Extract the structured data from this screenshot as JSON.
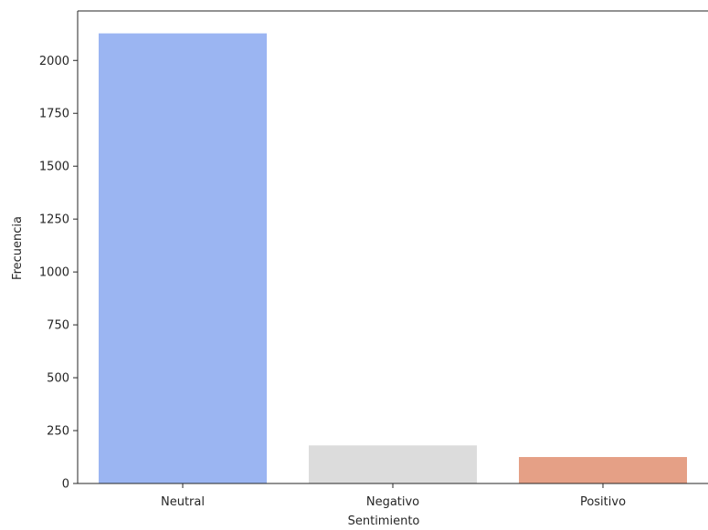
{
  "chart_data": {
    "type": "bar",
    "categories": [
      "Neutral",
      "Negativo",
      "Positivo"
    ],
    "values": [
      2128,
      180,
      125
    ],
    "colors": [
      "#9bb5f2",
      "#dcdcdc",
      "#e5a086"
    ],
    "title": "",
    "xlabel": "Sentimiento",
    "ylabel": "Frecuencia",
    "ylim": [
      0,
      2234
    ],
    "yticks": [
      0,
      250,
      500,
      750,
      1000,
      1250,
      1500,
      1750,
      2000
    ],
    "grid": false,
    "legend": "none"
  }
}
